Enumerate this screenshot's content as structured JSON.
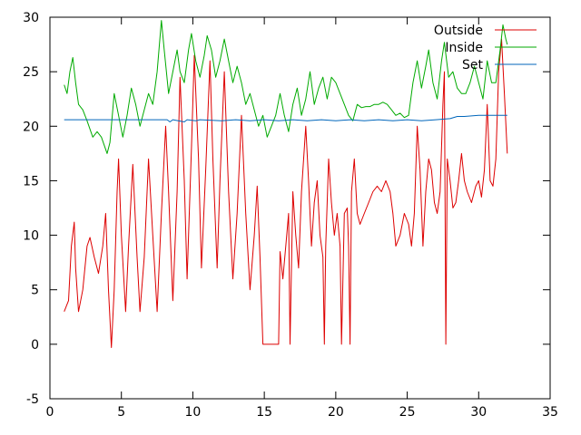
{
  "chart_data": {
    "type": "line",
    "xlim": [
      0,
      35
    ],
    "ylim": [
      -5,
      30
    ],
    "xticks": [
      0,
      5,
      10,
      15,
      20,
      25,
      30,
      35
    ],
    "yticks": [
      -5,
      0,
      5,
      10,
      15,
      20,
      25,
      30
    ],
    "grid": false,
    "legend_position": "top-right",
    "series": [
      {
        "name": "Outside",
        "color": "#dd0000",
        "points": [
          [
            1.0,
            3.0
          ],
          [
            1.3,
            4.0
          ],
          [
            1.5,
            9.0
          ],
          [
            1.7,
            11.2
          ],
          [
            1.8,
            7.0
          ],
          [
            2.0,
            3.0
          ],
          [
            2.3,
            5.0
          ],
          [
            2.6,
            9.0
          ],
          [
            2.8,
            9.8
          ],
          [
            3.1,
            8.0
          ],
          [
            3.4,
            6.5
          ],
          [
            3.7,
            9.0
          ],
          [
            3.9,
            12.0
          ],
          [
            4.1,
            5.0
          ],
          [
            4.3,
            -0.3
          ],
          [
            4.5,
            5.0
          ],
          [
            4.7,
            14.0
          ],
          [
            4.8,
            17.0
          ],
          [
            5.0,
            10.0
          ],
          [
            5.3,
            3.0
          ],
          [
            5.5,
            9.0
          ],
          [
            5.8,
            16.5
          ],
          [
            6.1,
            8.0
          ],
          [
            6.3,
            3.0
          ],
          [
            6.6,
            8.0
          ],
          [
            6.9,
            17.0
          ],
          [
            7.2,
            10.0
          ],
          [
            7.5,
            3.0
          ],
          [
            7.8,
            12.0
          ],
          [
            8.1,
            20.0
          ],
          [
            8.3,
            14.0
          ],
          [
            8.6,
            4.0
          ],
          [
            8.9,
            14.0
          ],
          [
            9.1,
            24.5
          ],
          [
            9.4,
            15.0
          ],
          [
            9.6,
            6.0
          ],
          [
            9.9,
            18.0
          ],
          [
            10.1,
            26.5
          ],
          [
            10.4,
            17.0
          ],
          [
            10.6,
            7.0
          ],
          [
            10.9,
            16.0
          ],
          [
            11.2,
            26.0
          ],
          [
            11.4,
            17.0
          ],
          [
            11.7,
            7.0
          ],
          [
            11.9,
            15.0
          ],
          [
            12.2,
            25.0
          ],
          [
            12.5,
            14.0
          ],
          [
            12.8,
            6.0
          ],
          [
            13.1,
            12.0
          ],
          [
            13.4,
            21.0
          ],
          [
            13.7,
            12.0
          ],
          [
            14.0,
            5.0
          ],
          [
            14.3,
            10.0
          ],
          [
            14.5,
            14.5
          ],
          [
            14.7,
            8.0
          ],
          [
            14.9,
            0.0
          ],
          [
            16.0,
            0.0
          ],
          [
            16.1,
            8.5
          ],
          [
            16.3,
            6.0
          ],
          [
            16.5,
            9.0
          ],
          [
            16.7,
            12.0
          ],
          [
            16.8,
            0.0
          ],
          [
            17.0,
            14.0
          ],
          [
            17.2,
            10.0
          ],
          [
            17.4,
            7.0
          ],
          [
            17.6,
            14.0
          ],
          [
            17.9,
            20.0
          ],
          [
            18.1,
            15.0
          ],
          [
            18.3,
            9.0
          ],
          [
            18.5,
            13.0
          ],
          [
            18.7,
            15.0
          ],
          [
            18.9,
            10.0
          ],
          [
            19.1,
            8.0
          ],
          [
            19.2,
            0.0
          ],
          [
            19.3,
            9.0
          ],
          [
            19.5,
            17.0
          ],
          [
            19.7,
            13.0
          ],
          [
            19.9,
            10.0
          ],
          [
            20.1,
            12.0
          ],
          [
            20.3,
            9.0
          ],
          [
            20.4,
            0.0
          ],
          [
            20.6,
            12.0
          ],
          [
            20.8,
            12.5
          ],
          [
            20.9,
            9.0
          ],
          [
            21.0,
            0.0
          ],
          [
            21.1,
            14.0
          ],
          [
            21.3,
            17.0
          ],
          [
            21.5,
            12.0
          ],
          [
            21.7,
            11.0
          ],
          [
            22.0,
            12.0
          ],
          [
            22.3,
            13.0
          ],
          [
            22.6,
            14.0
          ],
          [
            22.9,
            14.5
          ],
          [
            23.2,
            14.0
          ],
          [
            23.5,
            15.0
          ],
          [
            23.8,
            14.0
          ],
          [
            24.0,
            12.0
          ],
          [
            24.2,
            9.0
          ],
          [
            24.5,
            10.0
          ],
          [
            24.8,
            12.0
          ],
          [
            25.1,
            11.0
          ],
          [
            25.3,
            9.0
          ],
          [
            25.5,
            12.0
          ],
          [
            25.7,
            20.0
          ],
          [
            25.9,
            16.0
          ],
          [
            26.1,
            9.0
          ],
          [
            26.3,
            14.0
          ],
          [
            26.5,
            17.0
          ],
          [
            26.7,
            16.0
          ],
          [
            26.9,
            13.0
          ],
          [
            27.1,
            12.0
          ],
          [
            27.3,
            14.0
          ],
          [
            27.5,
            22.0
          ],
          [
            27.6,
            25.0
          ],
          [
            27.7,
            0.0
          ],
          [
            27.8,
            17.0
          ],
          [
            28.0,
            15.0
          ],
          [
            28.2,
            12.5
          ],
          [
            28.4,
            13.0
          ],
          [
            28.6,
            15.0
          ],
          [
            28.8,
            17.5
          ],
          [
            29.0,
            15.0
          ],
          [
            29.2,
            14.0
          ],
          [
            29.5,
            13.0
          ],
          [
            29.8,
            14.5
          ],
          [
            30.0,
            15.0
          ],
          [
            30.2,
            13.5
          ],
          [
            30.4,
            16.0
          ],
          [
            30.6,
            22.0
          ],
          [
            30.8,
            15.0
          ],
          [
            31.0,
            14.5
          ],
          [
            31.2,
            17.0
          ],
          [
            31.4,
            25.0
          ],
          [
            31.6,
            28.0
          ],
          [
            31.8,
            23.0
          ],
          [
            32.0,
            17.5
          ]
        ]
      },
      {
        "name": "Inside",
        "color": "#00aa00",
        "points": [
          [
            1.0,
            23.8
          ],
          [
            1.2,
            23.0
          ],
          [
            1.4,
            25.0
          ],
          [
            1.6,
            26.3
          ],
          [
            1.8,
            24.0
          ],
          [
            2.0,
            22.0
          ],
          [
            2.3,
            21.5
          ],
          [
            2.6,
            20.5
          ],
          [
            3.0,
            19.0
          ],
          [
            3.3,
            19.5
          ],
          [
            3.6,
            19.0
          ],
          [
            4.0,
            17.5
          ],
          [
            4.2,
            18.5
          ],
          [
            4.5,
            23.0
          ],
          [
            4.8,
            21.0
          ],
          [
            5.1,
            19.0
          ],
          [
            5.4,
            21.0
          ],
          [
            5.7,
            23.5
          ],
          [
            6.0,
            22.0
          ],
          [
            6.3,
            20.0
          ],
          [
            6.6,
            21.5
          ],
          [
            6.9,
            23.0
          ],
          [
            7.2,
            22.0
          ],
          [
            7.5,
            25.0
          ],
          [
            7.8,
            29.7
          ],
          [
            8.0,
            27.0
          ],
          [
            8.3,
            23.0
          ],
          [
            8.6,
            25.0
          ],
          [
            8.9,
            27.0
          ],
          [
            9.1,
            25.0
          ],
          [
            9.4,
            24.0
          ],
          [
            9.7,
            27.0
          ],
          [
            9.9,
            28.5
          ],
          [
            10.2,
            26.0
          ],
          [
            10.5,
            24.5
          ],
          [
            10.8,
            26.5
          ],
          [
            11.0,
            28.3
          ],
          [
            11.3,
            27.0
          ],
          [
            11.6,
            24.5
          ],
          [
            11.9,
            26.0
          ],
          [
            12.2,
            28.0
          ],
          [
            12.5,
            26.0
          ],
          [
            12.8,
            24.0
          ],
          [
            13.1,
            25.5
          ],
          [
            13.4,
            24.0
          ],
          [
            13.7,
            22.0
          ],
          [
            14.0,
            23.0
          ],
          [
            14.3,
            21.5
          ],
          [
            14.6,
            20.0
          ],
          [
            14.9,
            21.0
          ],
          [
            15.2,
            19.0
          ],
          [
            15.5,
            20.0
          ],
          [
            15.8,
            21.0
          ],
          [
            16.1,
            23.0
          ],
          [
            16.4,
            21.0
          ],
          [
            16.7,
            19.5
          ],
          [
            17.0,
            22.0
          ],
          [
            17.3,
            23.5
          ],
          [
            17.6,
            21.0
          ],
          [
            17.9,
            22.5
          ],
          [
            18.2,
            25.0
          ],
          [
            18.5,
            22.0
          ],
          [
            18.8,
            23.5
          ],
          [
            19.1,
            24.5
          ],
          [
            19.4,
            22.5
          ],
          [
            19.7,
            24.5
          ],
          [
            20.0,
            24.0
          ],
          [
            20.3,
            23.0
          ],
          [
            20.6,
            22.0
          ],
          [
            20.9,
            21.0
          ],
          [
            21.2,
            20.5
          ],
          [
            21.5,
            22.0
          ],
          [
            21.8,
            21.7
          ],
          [
            22.1,
            21.8
          ],
          [
            22.4,
            21.8
          ],
          [
            22.7,
            22.0
          ],
          [
            23.0,
            22.0
          ],
          [
            23.3,
            22.2
          ],
          [
            23.6,
            22.0
          ],
          [
            23.9,
            21.5
          ],
          [
            24.2,
            21.0
          ],
          [
            24.5,
            21.2
          ],
          [
            24.8,
            20.8
          ],
          [
            25.1,
            21.0
          ],
          [
            25.4,
            24.0
          ],
          [
            25.7,
            26.0
          ],
          [
            26.0,
            23.5
          ],
          [
            26.3,
            25.5
          ],
          [
            26.5,
            27.0
          ],
          [
            26.8,
            24.0
          ],
          [
            27.1,
            22.5
          ],
          [
            27.4,
            26.0
          ],
          [
            27.6,
            27.7
          ],
          [
            27.9,
            24.5
          ],
          [
            28.2,
            25.0
          ],
          [
            28.5,
            23.5
          ],
          [
            28.8,
            23.0
          ],
          [
            29.1,
            23.0
          ],
          [
            29.4,
            24.0
          ],
          [
            29.7,
            25.5
          ],
          [
            30.0,
            24.0
          ],
          [
            30.3,
            22.5
          ],
          [
            30.6,
            26.0
          ],
          [
            30.9,
            24.0
          ],
          [
            31.2,
            24.0
          ],
          [
            31.5,
            27.0
          ],
          [
            31.7,
            29.3
          ],
          [
            31.9,
            28.0
          ],
          [
            32.0,
            27.5
          ]
        ]
      },
      {
        "name": "Set",
        "color": "#0066bb",
        "points": [
          [
            1.0,
            20.6
          ],
          [
            4.0,
            20.6
          ],
          [
            7.0,
            20.6
          ],
          [
            8.2,
            20.6
          ],
          [
            8.4,
            20.4
          ],
          [
            8.6,
            20.6
          ],
          [
            9.4,
            20.4
          ],
          [
            9.6,
            20.6
          ],
          [
            10.2,
            20.5
          ],
          [
            10.5,
            20.6
          ],
          [
            12.0,
            20.5
          ],
          [
            13.0,
            20.6
          ],
          [
            14.0,
            20.5
          ],
          [
            15.0,
            20.6
          ],
          [
            16.0,
            20.5
          ],
          [
            17.0,
            20.6
          ],
          [
            18.0,
            20.5
          ],
          [
            19.0,
            20.6
          ],
          [
            20.0,
            20.5
          ],
          [
            21.0,
            20.6
          ],
          [
            22.0,
            20.5
          ],
          [
            23.0,
            20.6
          ],
          [
            24.0,
            20.5
          ],
          [
            25.0,
            20.6
          ],
          [
            26.0,
            20.5
          ],
          [
            27.0,
            20.6
          ],
          [
            28.0,
            20.7
          ],
          [
            28.5,
            20.9
          ],
          [
            29.0,
            20.9
          ],
          [
            30.0,
            21.0
          ],
          [
            31.0,
            21.0
          ],
          [
            32.0,
            21.0
          ]
        ]
      }
    ]
  }
}
